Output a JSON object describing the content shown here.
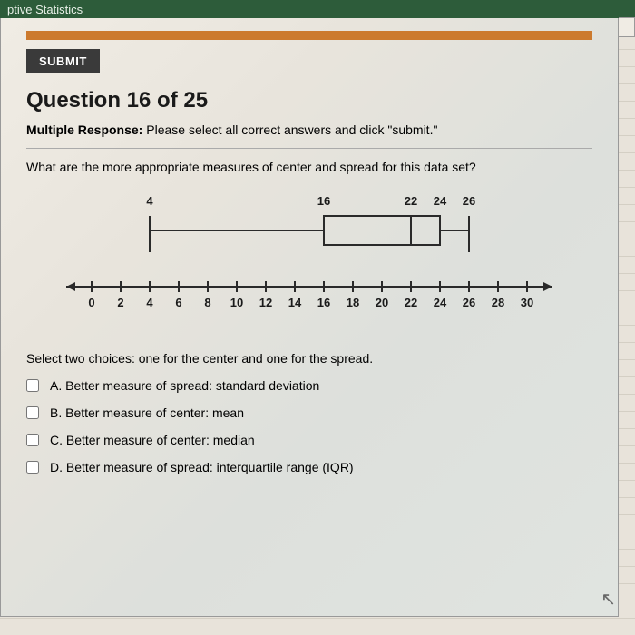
{
  "titlebar": {
    "text": "ptive Statistics"
  },
  "submit_label": "SUBMIT",
  "question": {
    "title": "Question 16 of 25",
    "type_label": "Multiple Response:",
    "type_desc": " Please select all correct answers and click \"submit.\"",
    "prompt": "What are the more appropriate measures of center and spread for this data set?",
    "select_instruction": "Select two choices: one for the center and one for the spread."
  },
  "boxplot": {
    "min": 4,
    "q1": 16,
    "median": 22,
    "q3": 24,
    "max": 26,
    "labels_above": [
      {
        "val": 4,
        "text": "4"
      },
      {
        "val": 16,
        "text": "16"
      },
      {
        "val": 22,
        "text": "22"
      },
      {
        "val": 24,
        "text": "24"
      },
      {
        "val": 26,
        "text": "26"
      }
    ],
    "axis": {
      "min": 0,
      "max": 30,
      "step": 2
    },
    "colors": {
      "box_stroke": "#2a2a2a",
      "axis_stroke": "#2a2a2a",
      "label_color": "#1a1a1a",
      "background": "transparent"
    },
    "stroke_width": 2,
    "font_size": 13
  },
  "choices": [
    {
      "letter": "A.",
      "text": "Better measure of spread: standard deviation"
    },
    {
      "letter": "B.",
      "text": "Better measure of center: mean"
    },
    {
      "letter": "C.",
      "text": "Better measure of center: median"
    },
    {
      "letter": "D.",
      "text": "Better measure of spread: interquartile range (IQR)"
    }
  ]
}
